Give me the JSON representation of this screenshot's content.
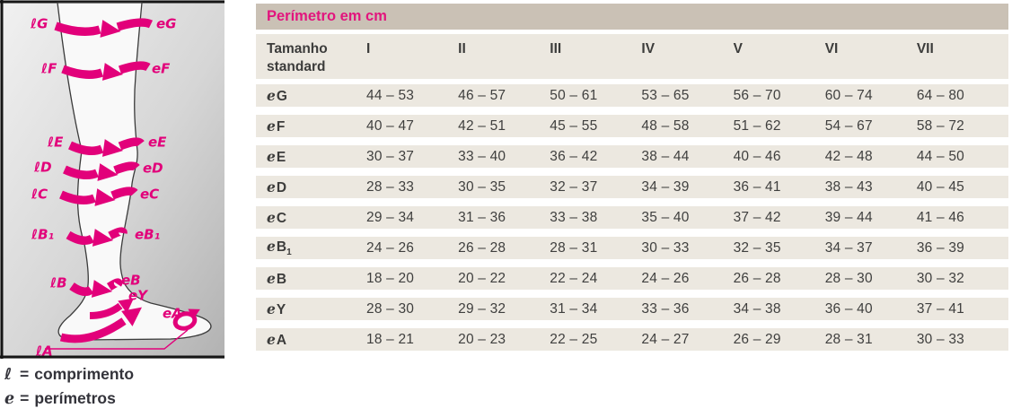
{
  "diagram": {
    "left_labels": [
      "ℓG",
      "ℓF",
      "ℓE",
      "ℓD",
      "ℓC",
      "ℓB₁",
      "ℓB",
      "ℓA"
    ],
    "right_labels": [
      "eG",
      "eF",
      "eE",
      "eD",
      "eC",
      "eB₁",
      "eB",
      "eY",
      "eA"
    ]
  },
  "legend": {
    "items": [
      {
        "symbol": "ℓ",
        "separator": "=",
        "label": "comprimento"
      },
      {
        "symbol": "e",
        "separator": "=",
        "label": "perímetros"
      }
    ]
  },
  "table": {
    "title": "Perímetro em cm",
    "size_label": "Tamanho standard",
    "columns": [
      "I",
      "II",
      "III",
      "IV",
      "V",
      "VI",
      "VII"
    ],
    "rows": [
      {
        "prefix": "e",
        "letter": "G",
        "sub": "",
        "values": [
          "44 – 53",
          "46 – 57",
          "50 – 61",
          "53 – 65",
          "56 – 70",
          "60 – 74",
          "64 – 80"
        ]
      },
      {
        "prefix": "e",
        "letter": "F",
        "sub": "",
        "values": [
          "40 – 47",
          "42 – 51",
          "45 – 55",
          "48 – 58",
          "51 – 62",
          "54 – 67",
          "58 – 72"
        ]
      },
      {
        "prefix": "e",
        "letter": "E",
        "sub": "",
        "values": [
          "30 – 37",
          "33 – 40",
          "36 – 42",
          "38 – 44",
          "40 – 46",
          "42 – 48",
          "44 – 50"
        ]
      },
      {
        "prefix": "e",
        "letter": "D",
        "sub": "",
        "values": [
          "28 – 33",
          "30 – 35",
          "32 – 37",
          "34 – 39",
          "36 – 41",
          "38 – 43",
          "40 – 45"
        ]
      },
      {
        "prefix": "e",
        "letter": "C",
        "sub": "",
        "values": [
          "29 – 34",
          "31 – 36",
          "33 – 38",
          "35 – 40",
          "37 – 42",
          "39 – 44",
          "41 – 46"
        ]
      },
      {
        "prefix": "e",
        "letter": "B",
        "sub": "1",
        "values": [
          "24 – 26",
          "26 – 28",
          "28 – 31",
          "30 – 33",
          "32 – 35",
          "34 – 37",
          "36 – 39"
        ]
      },
      {
        "prefix": "e",
        "letter": "B",
        "sub": "",
        "values": [
          "18 – 20",
          "20 – 22",
          "22 – 24",
          "24 – 26",
          "26 – 28",
          "28 – 30",
          "30 – 32"
        ]
      },
      {
        "prefix": "e",
        "letter": "Y",
        "sub": "",
        "values": [
          "28 – 30",
          "29 – 32",
          "31 – 34",
          "33 – 36",
          "34 – 38",
          "36 – 40",
          "37 – 41"
        ]
      },
      {
        "prefix": "e",
        "letter": "A",
        "sub": "",
        "values": [
          "18 – 21",
          "20 – 23",
          "22 – 25",
          "24 – 27",
          "26 – 29",
          "28 – 31",
          "30 – 33"
        ]
      }
    ]
  },
  "colors": {
    "pink": "#e2007a",
    "header_band_bg": "#cac1b5",
    "row_bg": "#ece8e0",
    "text_dark": "#3c3c3b"
  }
}
